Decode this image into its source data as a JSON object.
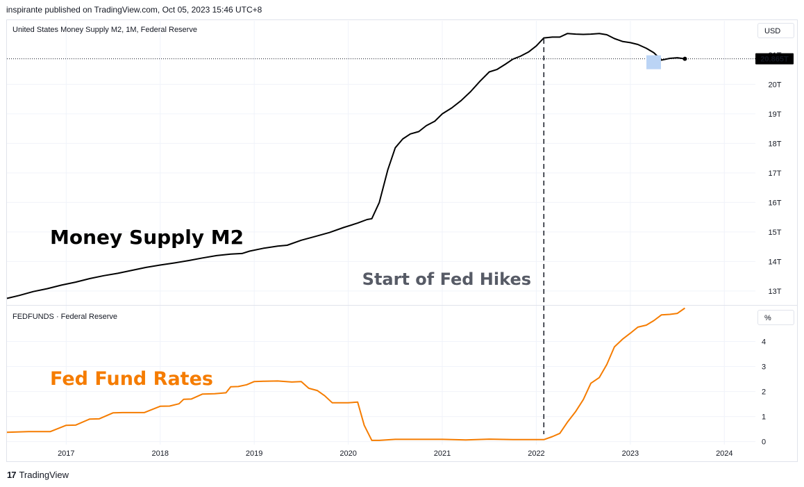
{
  "header": {
    "publish_line": "inspirante published on TradingView.com, Oct 05, 2023 15:46 UTC+8"
  },
  "footer": {
    "brand": "TradingView",
    "logo_glyph": "17"
  },
  "annotation": {
    "fed_hikes": "Start of Fed Hikes"
  },
  "chart_data": [
    {
      "type": "line",
      "title": "United States Money Supply M2, 1M, Federal Reserve",
      "big_label": "Money Supply M2",
      "unit": "USD",
      "last_value_label": "20.865T",
      "last_value": 20.865,
      "highlight_label": "21T",
      "y_ticks": [
        "13T",
        "14T",
        "15T",
        "16T",
        "17T",
        "18T",
        "19T",
        "20T"
      ],
      "y_tick_values": [
        13,
        14,
        15,
        16,
        17,
        18,
        19,
        20
      ],
      "ylim": [
        12.55,
        22.15
      ],
      "color": "#000000",
      "points": [
        [
          2016.37,
          12.75
        ],
        [
          2016.5,
          12.85
        ],
        [
          2016.65,
          12.98
        ],
        [
          2016.8,
          13.08
        ],
        [
          2016.95,
          13.2
        ],
        [
          2017.1,
          13.3
        ],
        [
          2017.25,
          13.42
        ],
        [
          2017.4,
          13.52
        ],
        [
          2017.55,
          13.6
        ],
        [
          2017.7,
          13.7
        ],
        [
          2017.85,
          13.8
        ],
        [
          2018.0,
          13.88
        ],
        [
          2018.15,
          13.95
        ],
        [
          2018.3,
          14.03
        ],
        [
          2018.45,
          14.12
        ],
        [
          2018.6,
          14.2
        ],
        [
          2018.75,
          14.25
        ],
        [
          2018.87,
          14.27
        ],
        [
          2018.95,
          14.35
        ],
        [
          2019.1,
          14.45
        ],
        [
          2019.25,
          14.52
        ],
        [
          2019.35,
          14.55
        ],
        [
          2019.5,
          14.72
        ],
        [
          2019.65,
          14.85
        ],
        [
          2019.8,
          14.98
        ],
        [
          2019.95,
          15.15
        ],
        [
          2020.1,
          15.3
        ],
        [
          2020.2,
          15.42
        ],
        [
          2020.25,
          15.45
        ],
        [
          2020.33,
          16.0
        ],
        [
          2020.42,
          17.1
        ],
        [
          2020.5,
          17.85
        ],
        [
          2020.58,
          18.15
        ],
        [
          2020.66,
          18.32
        ],
        [
          2020.75,
          18.4
        ],
        [
          2020.83,
          18.6
        ],
        [
          2020.92,
          18.75
        ],
        [
          2021.0,
          19.0
        ],
        [
          2021.1,
          19.2
        ],
        [
          2021.2,
          19.45
        ],
        [
          2021.3,
          19.75
        ],
        [
          2021.4,
          20.1
        ],
        [
          2021.5,
          20.42
        ],
        [
          2021.58,
          20.5
        ],
        [
          2021.67,
          20.68
        ],
        [
          2021.75,
          20.85
        ],
        [
          2021.83,
          20.95
        ],
        [
          2021.92,
          21.1
        ],
        [
          2022.0,
          21.3
        ],
        [
          2022.08,
          21.57
        ],
        [
          2022.17,
          21.6
        ],
        [
          2022.25,
          21.6
        ],
        [
          2022.33,
          21.72
        ],
        [
          2022.42,
          21.7
        ],
        [
          2022.5,
          21.69
        ],
        [
          2022.58,
          21.7
        ],
        [
          2022.67,
          21.72
        ],
        [
          2022.75,
          21.68
        ],
        [
          2022.83,
          21.55
        ],
        [
          2022.92,
          21.45
        ],
        [
          2023.0,
          21.41
        ],
        [
          2023.08,
          21.35
        ],
        [
          2023.17,
          21.22
        ],
        [
          2023.25,
          21.07
        ],
        [
          2023.33,
          20.82
        ],
        [
          2023.42,
          20.88
        ],
        [
          2023.5,
          20.9
        ],
        [
          2023.58,
          20.865
        ]
      ]
    },
    {
      "type": "line",
      "title": "FEDFUNDS · Federal Reserve",
      "big_label": "Fed Fund Rates",
      "unit": "%",
      "y_ticks": [
        "0",
        "1",
        "2",
        "3",
        "4"
      ],
      "y_tick_values": [
        0,
        1,
        2,
        3,
        4
      ],
      "ylim": [
        -0.12,
        5.4
      ],
      "color": "#f57c00",
      "points": [
        [
          2016.37,
          0.37
        ],
        [
          2016.6,
          0.4
        ],
        [
          2016.83,
          0.4
        ],
        [
          2017.0,
          0.65
        ],
        [
          2017.1,
          0.66
        ],
        [
          2017.25,
          0.9
        ],
        [
          2017.35,
          0.91
        ],
        [
          2017.5,
          1.15
        ],
        [
          2017.6,
          1.16
        ],
        [
          2017.83,
          1.16
        ],
        [
          2018.0,
          1.41
        ],
        [
          2018.1,
          1.42
        ],
        [
          2018.2,
          1.51
        ],
        [
          2018.25,
          1.69
        ],
        [
          2018.33,
          1.7
        ],
        [
          2018.45,
          1.9
        ],
        [
          2018.58,
          1.91
        ],
        [
          2018.7,
          1.95
        ],
        [
          2018.75,
          2.19
        ],
        [
          2018.83,
          2.2
        ],
        [
          2018.92,
          2.27
        ],
        [
          2019.0,
          2.4
        ],
        [
          2019.1,
          2.41
        ],
        [
          2019.25,
          2.42
        ],
        [
          2019.4,
          2.38
        ],
        [
          2019.5,
          2.4
        ],
        [
          2019.58,
          2.13
        ],
        [
          2019.67,
          2.04
        ],
        [
          2019.75,
          1.83
        ],
        [
          2019.83,
          1.55
        ],
        [
          2019.92,
          1.55
        ],
        [
          2020.0,
          1.55
        ],
        [
          2020.1,
          1.58
        ],
        [
          2020.17,
          0.65
        ],
        [
          2020.25,
          0.05
        ],
        [
          2020.33,
          0.05
        ],
        [
          2020.5,
          0.09
        ],
        [
          2020.75,
          0.09
        ],
        [
          2021.0,
          0.09
        ],
        [
          2021.25,
          0.07
        ],
        [
          2021.5,
          0.1
        ],
        [
          2021.75,
          0.08
        ],
        [
          2022.0,
          0.08
        ],
        [
          2022.08,
          0.08
        ],
        [
          2022.17,
          0.2
        ],
        [
          2022.25,
          0.33
        ],
        [
          2022.33,
          0.77
        ],
        [
          2022.42,
          1.21
        ],
        [
          2022.5,
          1.68
        ],
        [
          2022.58,
          2.33
        ],
        [
          2022.67,
          2.56
        ],
        [
          2022.75,
          3.08
        ],
        [
          2022.83,
          3.78
        ],
        [
          2022.92,
          4.1
        ],
        [
          2023.0,
          4.33
        ],
        [
          2023.08,
          4.57
        ],
        [
          2023.17,
          4.65
        ],
        [
          2023.25,
          4.83
        ],
        [
          2023.33,
          5.06
        ],
        [
          2023.42,
          5.08
        ],
        [
          2023.5,
          5.12
        ],
        [
          2023.58,
          5.33
        ]
      ]
    }
  ],
  "x_axis": {
    "tick_labels": [
      "2017",
      "2018",
      "2019",
      "2020",
      "2021",
      "2022",
      "2023",
      "2024"
    ],
    "tick_values": [
      2017,
      2018,
      2019,
      2020,
      2021,
      2022,
      2023,
      2024
    ],
    "xlim": [
      2016.37,
      2024.33
    ]
  },
  "marker_x": 2022.08
}
